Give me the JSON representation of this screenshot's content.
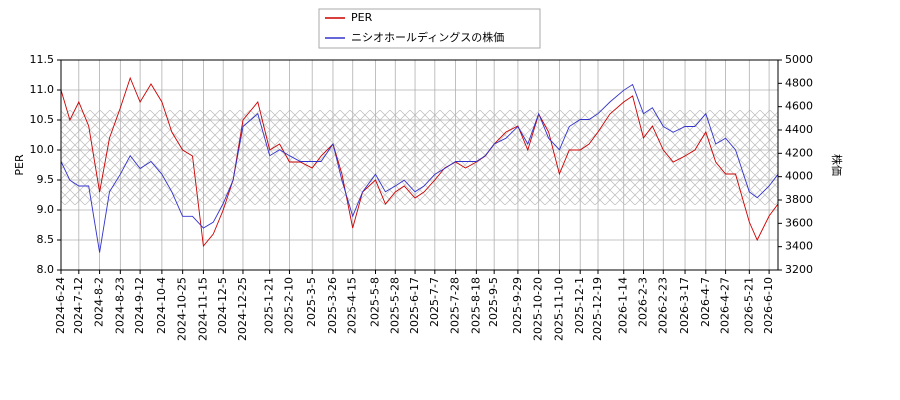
{
  "chart_data": {
    "type": "line",
    "y_label": "PER",
    "y2_label": "株価",
    "x": [
      "2024-6-24",
      "2024-7-3",
      "2024-7-12",
      "2024-7-22",
      "2024-8-2",
      "2024-8-12",
      "2024-8-23",
      "2024-9-2",
      "2024-9-12",
      "2024-9-23",
      "2024-10-4",
      "2024-10-14",
      "2024-10-25",
      "2024-11-4",
      "2024-11-15",
      "2024-11-25",
      "2024-12-5",
      "2024-12-15",
      "2024-12-25",
      "2025-1-9",
      "2025-1-21",
      "2025-1-31",
      "2025-2-10",
      "2025-2-21",
      "2025-3-5",
      "2025-3-14",
      "2025-3-26",
      "2025-4-4",
      "2025-4-15",
      "2025-4-25",
      "2025-5-8",
      "2025-5-18",
      "2025-5-28",
      "2025-6-6",
      "2025-6-17",
      "2025-6-26",
      "2025-7-7",
      "2025-7-17",
      "2025-7-28",
      "2025-8-7",
      "2025-8-18",
      "2025-8-27",
      "2025-9-5",
      "2025-9-17",
      "2025-9-29",
      "2025-10-9",
      "2025-10-20",
      "2025-10-30",
      "2025-11-10",
      "2025-11-20",
      "2025-12-1",
      "2025-12-10",
      "2025-12-19",
      "2025-12-31",
      "2026-1-14",
      "2026-1-23",
      "2026-2-3",
      "2026-2-12",
      "2026-2-23",
      "2026-3-5",
      "2026-3-17",
      "2026-3-27",
      "2026-4-7",
      "2026-4-17",
      "2026-4-27",
      "2026-5-7",
      "2026-5-21",
      "2026-5-29",
      "2026-6-10",
      "2026-6-19"
    ],
    "series": [
      {
        "name": "PER",
        "color": "#cc0000",
        "axis": "y",
        "values": [
          11.0,
          10.5,
          10.8,
          10.4,
          9.3,
          10.2,
          10.7,
          11.2,
          10.8,
          11.1,
          10.8,
          10.3,
          10.0,
          9.9,
          8.4,
          8.6,
          9.0,
          9.5,
          10.5,
          10.8,
          10.0,
          10.1,
          9.8,
          9.8,
          9.7,
          9.9,
          10.1,
          9.6,
          8.7,
          9.3,
          9.5,
          9.1,
          9.3,
          9.4,
          9.2,
          9.3,
          9.5,
          9.7,
          9.8,
          9.7,
          9.8,
          9.9,
          10.1,
          10.3,
          10.4,
          10.0,
          10.6,
          10.3,
          9.6,
          10.0,
          10.0,
          10.1,
          10.3,
          10.6,
          10.8,
          10.9,
          10.2,
          10.4,
          10.0,
          9.8,
          9.9,
          10.0,
          10.3,
          9.8,
          9.6,
          9.6,
          8.8,
          8.5,
          8.9,
          9.1
        ]
      },
      {
        "name": "ニシオホールディングスの株価",
        "color": "#3333cc",
        "axis": "y2",
        "values": [
          4130,
          3970,
          3920,
          3920,
          3350,
          3870,
          4020,
          4180,
          4070,
          4130,
          4020,
          3870,
          3660,
          3660,
          3560,
          3610,
          3770,
          3970,
          4430,
          4540,
          4180,
          4230,
          4180,
          4130,
          4130,
          4130,
          4280,
          3970,
          3660,
          3870,
          4020,
          3870,
          3920,
          3970,
          3870,
          3920,
          4020,
          4070,
          4130,
          4130,
          4130,
          4180,
          4280,
          4330,
          4430,
          4280,
          4540,
          4330,
          4230,
          4430,
          4490,
          4490,
          4540,
          4640,
          4740,
          4790,
          4540,
          4590,
          4430,
          4380,
          4430,
          4430,
          4540,
          4280,
          4330,
          4230,
          3870,
          3820,
          3920,
          4020
        ]
      }
    ],
    "xlim": [
      "2024-6-24",
      "2026-6-19"
    ],
    "xticks": [
      "2024-6-24",
      "2024-7-12",
      "2024-8-2",
      "2024-8-23",
      "2024-9-12",
      "2024-10-4",
      "2024-10-25",
      "2024-11-15",
      "2024-12-5",
      "2024-12-25",
      "2025-1-21",
      "2025-2-10",
      "2025-3-5",
      "2025-3-26",
      "2025-4-15",
      "2025-5-8",
      "2025-5-28",
      "2025-6-17",
      "2025-7-7",
      "2025-7-28",
      "2025-8-18",
      "2025-9-5",
      "2025-9-29",
      "2025-10-20",
      "2025-11-10",
      "2025-12-1",
      "2025-12-19",
      "2026-1-14",
      "2026-2-3",
      "2026-2-23",
      "2026-3-17",
      "2026-4-7",
      "2026-4-27",
      "2026-5-21",
      "2026-6-10"
    ],
    "ylim": [
      8.0,
      11.5
    ],
    "yticks": [
      {
        "value": 8,
        "label": "8.0"
      },
      {
        "value": 8.5,
        "label": "8.5"
      },
      {
        "value": 9,
        "label": "9.0"
      },
      {
        "value": 9.5,
        "label": "9.5"
      },
      {
        "value": 10,
        "label": "10.0"
      },
      {
        "value": 10.5,
        "label": "10.5"
      },
      {
        "value": 11,
        "label": "11.0"
      },
      {
        "value": 11.5,
        "label": "11.5"
      }
    ],
    "y2lim": [
      3200,
      5000
    ],
    "y2ticks": [
      3200,
      3400,
      3600,
      3800,
      4000,
      4200,
      4400,
      4600,
      4800,
      5000
    ],
    "grid": true,
    "legend": "top"
  }
}
